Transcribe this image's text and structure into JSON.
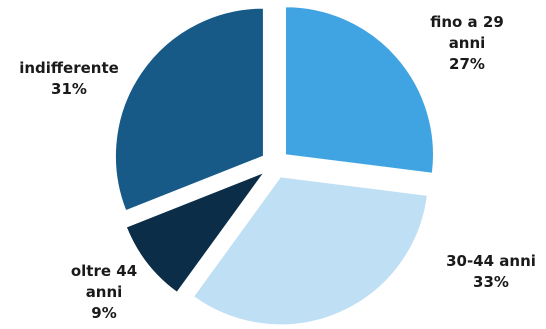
{
  "chart_data": {
    "type": "pie",
    "exploded": true,
    "slices": [
      {
        "label_lines": [
          "fino a 29",
          "anni"
        ],
        "value_text": "27%",
        "value": 27,
        "color": "#41a4e2"
      },
      {
        "label_lines": [
          "30-44 anni"
        ],
        "value_text": "33%",
        "value": 33,
        "color": "#bfdff5"
      },
      {
        "label_lines": [
          "oltre 44",
          "anni"
        ],
        "value_text": "9%",
        "value": 9,
        "color": "#0c2d48"
      },
      {
        "label_lines": [
          "indifferente"
        ],
        "value_text": "31%",
        "value": 31,
        "color": "#175a88"
      }
    ]
  }
}
